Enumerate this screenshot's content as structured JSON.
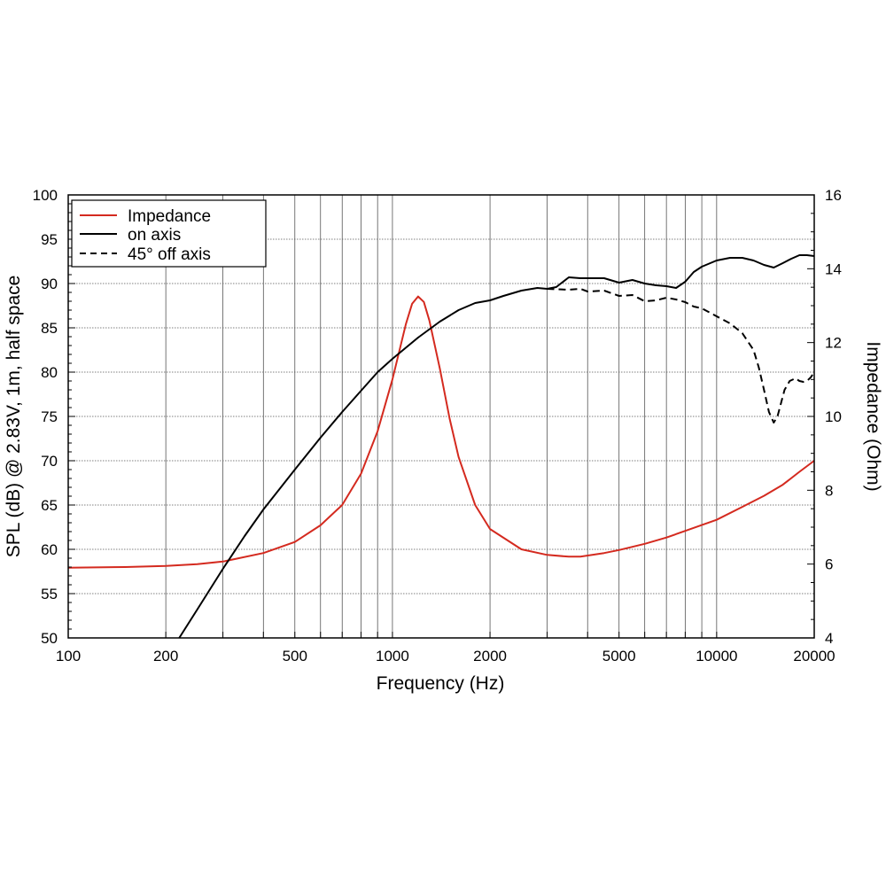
{
  "chart_data": {
    "type": "line",
    "xlabel": "Frequency (Hz)",
    "ylabel": "SPL (dB) @ 2.83V, 1m, half space",
    "y2label": "Impedance (Ohm)",
    "xscale": "log",
    "xlim": [
      100,
      20000
    ],
    "ylim": [
      50,
      100
    ],
    "y2lim": [
      4,
      16
    ],
    "grid": true,
    "legend_position": "top-left",
    "x_ticks": [
      100,
      200,
      500,
      1000,
      2000,
      5000,
      10000,
      20000
    ],
    "x_tick_labels": [
      "100",
      "200",
      "500",
      "1000",
      "2000",
      "5000",
      "10000",
      "20000"
    ],
    "y_ticks": [
      50,
      55,
      60,
      65,
      70,
      75,
      80,
      85,
      90,
      95,
      100
    ],
    "y_tick_labels": [
      "50",
      "55",
      "60",
      "65",
      "70",
      "75",
      "80",
      "85",
      "90",
      "95",
      "100"
    ],
    "y2_ticks": [
      4,
      6,
      8,
      10,
      12,
      14,
      16
    ],
    "y2_tick_labels": [
      "4",
      "6",
      "8",
      "10",
      "12",
      "14",
      "16"
    ],
    "series": [
      {
        "name": "Impedance",
        "axis": "right",
        "color": "#d42a1f",
        "dash": "solid",
        "x": [
          100,
          150,
          200,
          250,
          300,
          400,
          500,
          600,
          700,
          800,
          900,
          1000,
          1100,
          1150,
          1200,
          1250,
          1300,
          1400,
          1500,
          1600,
          1800,
          2000,
          2500,
          3000,
          3500,
          3800,
          4500,
          5000,
          6000,
          7000,
          8000,
          10000,
          12000,
          14000,
          16000,
          18000,
          20000
        ],
        "y": [
          5.9,
          5.92,
          5.95,
          6.0,
          6.07,
          6.3,
          6.6,
          7.05,
          7.6,
          8.45,
          9.6,
          11.0,
          12.5,
          13.05,
          13.25,
          13.1,
          12.6,
          11.3,
          9.95,
          8.9,
          7.6,
          6.95,
          6.4,
          6.25,
          6.2,
          6.2,
          6.3,
          6.38,
          6.55,
          6.72,
          6.9,
          7.2,
          7.55,
          7.85,
          8.15,
          8.5,
          8.8
        ]
      },
      {
        "name": "on axis",
        "axis": "left",
        "color": "#000000",
        "dash": "solid",
        "x": [
          220,
          250,
          300,
          350,
          400,
          500,
          600,
          700,
          800,
          900,
          1000,
          1200,
          1400,
          1600,
          1800,
          2000,
          2200,
          2500,
          2800,
          3000,
          3200,
          3500,
          3800,
          4000,
          4500,
          5000,
          5500,
          6000,
          6500,
          7000,
          7500,
          8000,
          8500,
          9000,
          10000,
          11000,
          12000,
          13000,
          14000,
          15000,
          16000,
          17000,
          18000,
          19000,
          20000
        ],
        "y": [
          50.0,
          53.2,
          57.8,
          61.5,
          64.5,
          69.0,
          72.6,
          75.5,
          77.9,
          80.0,
          81.5,
          83.9,
          85.7,
          87.0,
          87.8,
          88.1,
          88.6,
          89.2,
          89.5,
          89.4,
          89.6,
          90.7,
          90.6,
          90.6,
          90.6,
          90.1,
          90.4,
          90.0,
          89.8,
          89.7,
          89.5,
          90.2,
          91.3,
          91.9,
          92.6,
          92.9,
          92.9,
          92.6,
          92.1,
          91.8,
          92.3,
          92.8,
          93.2,
          93.2,
          93.1
        ]
      },
      {
        "name": "45° off axis",
        "axis": "left",
        "color": "#000000",
        "dash": "dashed",
        "x": [
          3000,
          3500,
          3800,
          4000,
          4500,
          5000,
          5500,
          6000,
          6500,
          7000,
          7500,
          8000,
          8500,
          9000,
          10000,
          11000,
          12000,
          13000,
          13500,
          14000,
          14500,
          15000,
          15400,
          15800,
          16200,
          16800,
          17500,
          18000,
          18500,
          19000,
          19500,
          20000
        ],
        "y": [
          89.4,
          89.3,
          89.4,
          89.1,
          89.2,
          88.6,
          88.7,
          88.0,
          88.1,
          88.4,
          88.2,
          87.9,
          87.4,
          87.2,
          86.3,
          85.5,
          84.4,
          82.5,
          80.5,
          78.0,
          75.5,
          74.3,
          75.0,
          76.5,
          78.0,
          79.0,
          79.3,
          79.0,
          78.9,
          79.0,
          79.4,
          80.0
        ]
      }
    ]
  }
}
